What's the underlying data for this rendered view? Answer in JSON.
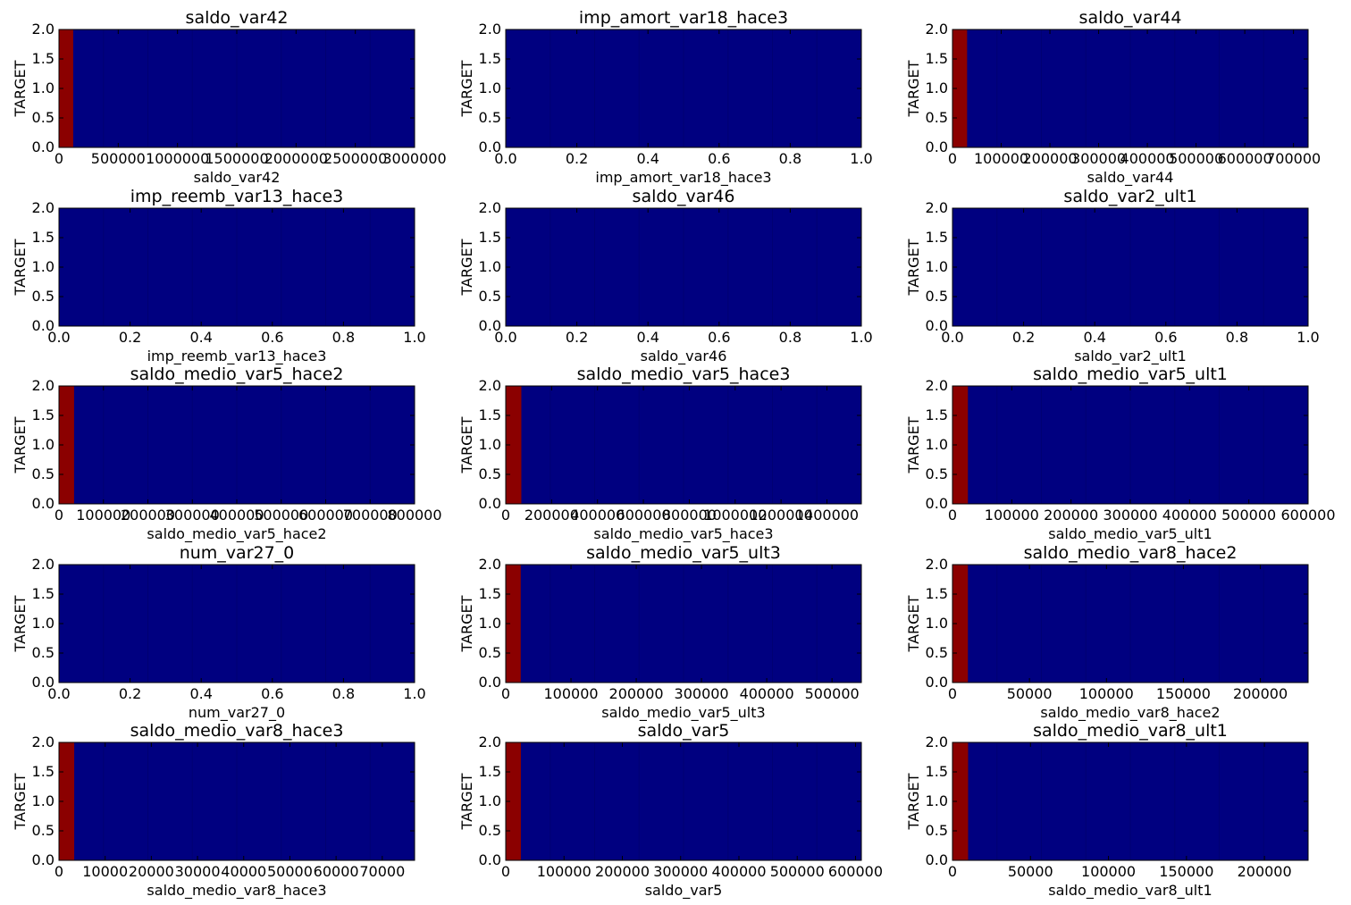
{
  "chart_data": [
    {
      "type": "heatmap",
      "title": "saldo_var42",
      "xlabel": "saldo_var42",
      "ylabel": "TARGET",
      "xlim": [
        0,
        3000000
      ],
      "ylim": [
        0,
        2
      ],
      "xticks": [
        "0",
        "500000",
        "1000000",
        "1500000",
        "2000000",
        "2500000",
        "3000000"
      ],
      "yticks": [
        "0.0",
        "0.5",
        "1.0",
        "1.5",
        "2.0"
      ],
      "hot_band": [
        0,
        120000
      ],
      "colors": {
        "high": "#8b0000",
        "low": "#000080"
      }
    },
    {
      "type": "heatmap",
      "title": "imp_amort_var18_hace3",
      "xlabel": "imp_amort_var18_hace3",
      "ylabel": "TARGET",
      "xlim": [
        0,
        1
      ],
      "ylim": [
        0,
        2
      ],
      "xticks": [
        "0.0",
        "0.2",
        "0.4",
        "0.6",
        "0.8",
        "1.0"
      ],
      "yticks": [
        "0.0",
        "0.5",
        "1.0",
        "1.5",
        "2.0"
      ],
      "hot_band": null,
      "colors": {
        "high": "#8b0000",
        "low": "#000080"
      }
    },
    {
      "type": "heatmap",
      "title": "saldo_var44",
      "xlabel": "saldo_var44",
      "ylabel": "TARGET",
      "xlim": [
        0,
        730000
      ],
      "ylim": [
        0,
        2
      ],
      "xticks": [
        "0",
        "100000",
        "200000",
        "300000",
        "400000",
        "500000",
        "600000",
        "700000"
      ],
      "yticks": [
        "0.0",
        "0.5",
        "1.0",
        "1.5",
        "2.0"
      ],
      "hot_band": [
        0,
        30000
      ],
      "colors": {
        "high": "#8b0000",
        "low": "#000080"
      }
    },
    {
      "type": "heatmap",
      "title": "imp_reemb_var13_hace3",
      "xlabel": "imp_reemb_var13_hace3",
      "ylabel": "TARGET",
      "xlim": [
        0,
        1
      ],
      "ylim": [
        0,
        2
      ],
      "xticks": [
        "0.0",
        "0.2",
        "0.4",
        "0.6",
        "0.8",
        "1.0"
      ],
      "yticks": [
        "0.0",
        "0.5",
        "1.0",
        "1.5",
        "2.0"
      ],
      "hot_band": null,
      "colors": {
        "high": "#8b0000",
        "low": "#000080"
      }
    },
    {
      "type": "heatmap",
      "title": "saldo_var46",
      "xlabel": "saldo_var46",
      "ylabel": "TARGET",
      "xlim": [
        0,
        1
      ],
      "ylim": [
        0,
        2
      ],
      "xticks": [
        "0.0",
        "0.2",
        "0.4",
        "0.6",
        "0.8",
        "1.0"
      ],
      "yticks": [
        "0.0",
        "0.5",
        "1.0",
        "1.5",
        "2.0"
      ],
      "hot_band": null,
      "colors": {
        "high": "#8b0000",
        "low": "#000080"
      }
    },
    {
      "type": "heatmap",
      "title": "saldo_var2_ult1",
      "xlabel": "saldo_var2_ult1",
      "ylabel": "TARGET",
      "xlim": [
        0,
        1
      ],
      "ylim": [
        0,
        2
      ],
      "xticks": [
        "0.0",
        "0.2",
        "0.4",
        "0.6",
        "0.8",
        "1.0"
      ],
      "yticks": [
        "0.0",
        "0.5",
        "1.0",
        "1.5",
        "2.0"
      ],
      "hot_band": null,
      "colors": {
        "high": "#8b0000",
        "low": "#000080"
      }
    },
    {
      "type": "heatmap",
      "title": "saldo_medio_var5_hace2",
      "xlabel": "saldo_medio_var5_hace2",
      "ylabel": "TARGET",
      "xlim": [
        0,
        800000
      ],
      "ylim": [
        0,
        2
      ],
      "xticks": [
        "0",
        "100000",
        "200000",
        "300000",
        "400000",
        "500000",
        "600000",
        "700000",
        "800000"
      ],
      "yticks": [
        "0.0",
        "0.5",
        "1.0",
        "1.5",
        "2.0"
      ],
      "hot_band": [
        0,
        34000
      ],
      "colors": {
        "high": "#8b0000",
        "low": "#000080"
      }
    },
    {
      "type": "heatmap",
      "title": "saldo_medio_var5_hace3",
      "xlabel": "saldo_medio_var5_hace3",
      "ylabel": "TARGET",
      "xlim": [
        0,
        1550000
      ],
      "ylim": [
        0,
        2
      ],
      "xticks": [
        "0",
        "200000",
        "400000",
        "600000",
        "800000",
        "1000000",
        "1200000",
        "1400000"
      ],
      "yticks": [
        "0.0",
        "0.5",
        "1.0",
        "1.5",
        "2.0"
      ],
      "hot_band": [
        0,
        68000
      ],
      "colors": {
        "high": "#8b0000",
        "low": "#000080"
      }
    },
    {
      "type": "heatmap",
      "title": "saldo_medio_var5_ult1",
      "xlabel": "saldo_medio_var5_ult1",
      "ylabel": "TARGET",
      "xlim": [
        0,
        600000
      ],
      "ylim": [
        0,
        2
      ],
      "xticks": [
        "0",
        "100000",
        "200000",
        "300000",
        "400000",
        "500000",
        "600000"
      ],
      "yticks": [
        "0.0",
        "0.5",
        "1.0",
        "1.5",
        "2.0"
      ],
      "hot_band": [
        0,
        26000
      ],
      "colors": {
        "high": "#8b0000",
        "low": "#000080"
      }
    },
    {
      "type": "heatmap",
      "title": "num_var27_0",
      "xlabel": "num_var27_0",
      "ylabel": "TARGET",
      "xlim": [
        0,
        1
      ],
      "ylim": [
        0,
        2
      ],
      "xticks": [
        "0.0",
        "0.2",
        "0.4",
        "0.6",
        "0.8",
        "1.0"
      ],
      "yticks": [
        "0.0",
        "0.5",
        "1.0",
        "1.5",
        "2.0"
      ],
      "hot_band": null,
      "colors": {
        "high": "#8b0000",
        "low": "#000080"
      }
    },
    {
      "type": "heatmap",
      "title": "saldo_medio_var5_ult3",
      "xlabel": "saldo_medio_var5_ult3",
      "ylabel": "TARGET",
      "xlim": [
        0,
        545000
      ],
      "ylim": [
        0,
        2
      ],
      "xticks": [
        "0",
        "100000",
        "200000",
        "300000",
        "400000",
        "500000"
      ],
      "yticks": [
        "0.0",
        "0.5",
        "1.0",
        "1.5",
        "2.0"
      ],
      "hot_band": [
        0,
        23000
      ],
      "colors": {
        "high": "#8b0000",
        "low": "#000080"
      }
    },
    {
      "type": "heatmap",
      "title": "saldo_medio_var8_hace2",
      "xlabel": "saldo_medio_var8_hace2",
      "ylabel": "TARGET",
      "xlim": [
        0,
        231000
      ],
      "ylim": [
        0,
        2
      ],
      "xticks": [
        "0",
        "50000",
        "100000",
        "150000",
        "200000"
      ],
      "yticks": [
        "0.0",
        "0.5",
        "1.0",
        "1.5",
        "2.0"
      ],
      "hot_band": [
        0,
        10000
      ],
      "colors": {
        "high": "#8b0000",
        "low": "#000080"
      }
    },
    {
      "type": "heatmap",
      "title": "saldo_medio_var8_hace3",
      "xlabel": "saldo_medio_var8_hace3",
      "ylabel": "TARGET",
      "xlim": [
        0,
        77000
      ],
      "ylim": [
        0,
        2
      ],
      "xticks": [
        "0",
        "10000",
        "20000",
        "30000",
        "40000",
        "50000",
        "60000",
        "70000"
      ],
      "yticks": [
        "0.0",
        "0.5",
        "1.0",
        "1.5",
        "2.0"
      ],
      "hot_band": [
        0,
        3300
      ],
      "colors": {
        "high": "#8b0000",
        "low": "#000080"
      }
    },
    {
      "type": "heatmap",
      "title": "saldo_var5",
      "xlabel": "saldo_var5",
      "ylabel": "TARGET",
      "xlim": [
        0,
        610000
      ],
      "ylim": [
        0,
        2
      ],
      "xticks": [
        "0",
        "100000",
        "200000",
        "300000",
        "400000",
        "500000",
        "600000"
      ],
      "yticks": [
        "0.0",
        "0.5",
        "1.0",
        "1.5",
        "2.0"
      ],
      "hot_band": [
        0,
        26000
      ],
      "colors": {
        "high": "#8b0000",
        "low": "#000080"
      }
    },
    {
      "type": "heatmap",
      "title": "saldo_medio_var8_ult1",
      "xlabel": "saldo_medio_var8_ult1",
      "ylabel": "TARGET",
      "xlim": [
        0,
        228000
      ],
      "ylim": [
        0,
        2
      ],
      "xticks": [
        "0",
        "50000",
        "100000",
        "150000",
        "200000"
      ],
      "yticks": [
        "0.0",
        "0.5",
        "1.0",
        "1.5",
        "2.0"
      ],
      "hot_band": [
        0,
        10000
      ],
      "colors": {
        "high": "#8b0000",
        "low": "#000080"
      }
    }
  ]
}
